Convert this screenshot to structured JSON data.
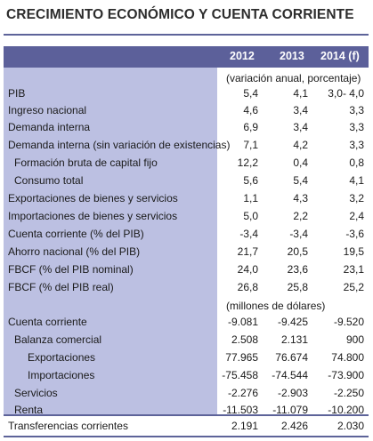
{
  "title": "CRECIMIENTO ECONÓMICO Y CUENTA CORRIENTE",
  "columns": [
    "2012",
    "2013",
    "2014 (f)"
  ],
  "note_growth": "(variación anual, porcentaje)",
  "note_millions": "(millones de dólares)",
  "growth_rows": [
    {
      "label": "PIB",
      "v": [
        "5,4",
        "4,1",
        "3,0- 4,0"
      ]
    },
    {
      "label": "Ingreso nacional",
      "v": [
        "4,6",
        "3,4",
        "3,3"
      ]
    },
    {
      "label": "Demanda interna",
      "v": [
        "6,9",
        "3,4",
        "3,3"
      ]
    },
    {
      "label": "Demanda interna (sin variación de existencias)",
      "v": [
        "7,1",
        "4,2",
        "3,3"
      ]
    },
    {
      "label": "Formación bruta de capital fijo",
      "v": [
        "12,2",
        "0,4",
        "0,8"
      ]
    },
    {
      "label": "Consumo total",
      "v": [
        "5,6",
        "5,4",
        "4,1"
      ]
    },
    {
      "label": "Exportaciones de bienes y servicios",
      "v": [
        "1,1",
        "4,3",
        "3,2"
      ]
    },
    {
      "label": "Importaciones de bienes y servicios",
      "v": [
        "5,0",
        "2,2",
        "2,4"
      ]
    },
    {
      "label": "Cuenta corriente (% del PIB)",
      "v": [
        "-3,4",
        "-3,4",
        "-3,6"
      ]
    },
    {
      "label": "Ahorro nacional (% del PIB)",
      "v": [
        "21,7",
        "20,5",
        "19,5"
      ]
    },
    {
      "label": "FBCF (% del PIB nominal)",
      "v": [
        "24,0",
        "23,6",
        "23,1"
      ]
    },
    {
      "label": "FBCF (% del PIB real)",
      "v": [
        "26,8",
        "25,8",
        "25,2"
      ]
    }
  ],
  "money_rows": [
    {
      "label": "Cuenta corriente",
      "v": [
        "-9.081",
        "-9.425",
        "-9.520"
      ]
    },
    {
      "label": "Balanza comercial",
      "v": [
        "2.508",
        "2.131",
        "900"
      ]
    },
    {
      "label": "Exportaciones",
      "v": [
        "77.965",
        "76.674",
        "74.800"
      ]
    },
    {
      "label": "Importaciones",
      "v": [
        "-75.458",
        "-74.544",
        "-73.900"
      ]
    },
    {
      "label": "Servicios",
      "v": [
        "-2.276",
        "-2.903",
        "-2.250"
      ]
    },
    {
      "label": "Renta",
      "v": [
        "-11.503",
        "-11.079",
        "-10.200"
      ]
    },
    {
      "label": "Transferencias corrientes",
      "v": [
        "2.191",
        "2.426",
        "2.030"
      ]
    }
  ]
}
